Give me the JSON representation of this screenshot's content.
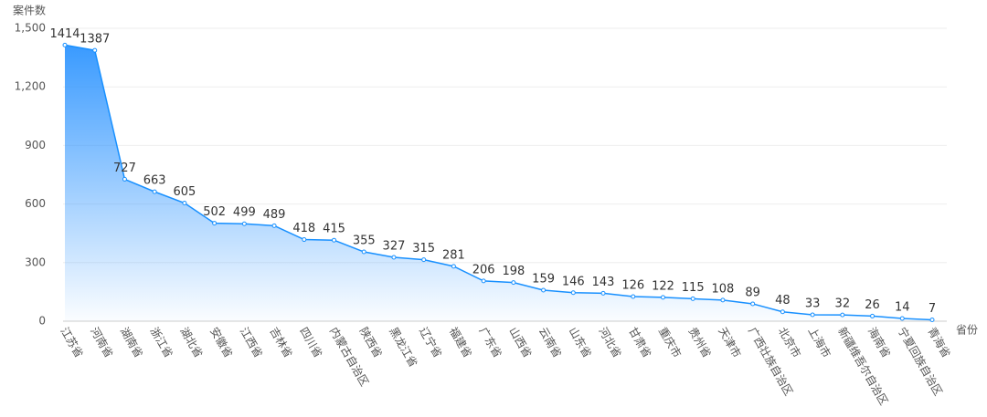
{
  "chart_data": {
    "type": "area",
    "y_label": "案件数",
    "x_label": "省份",
    "categories": [
      "江苏省",
      "河南省",
      "湖南省",
      "浙江省",
      "湖北省",
      "安徽省",
      "江西省",
      "吉林省",
      "四川省",
      "内蒙古自治区",
      "陕西省",
      "黑龙江省",
      "辽宁省",
      "福建省",
      "广东省",
      "山西省",
      "云南省",
      "山东省",
      "河北省",
      "甘肃省",
      "重庆市",
      "贵州省",
      "天津市",
      "广西壮族自治区",
      "北京市",
      "上海市",
      "新疆维吾尔自治区",
      "海南省",
      "宁夏回族自治区",
      "青海省"
    ],
    "values": [
      1414,
      1387,
      727,
      663,
      605,
      502,
      499,
      489,
      418,
      415,
      355,
      327,
      315,
      281,
      206,
      198,
      159,
      146,
      143,
      126,
      122,
      115,
      108,
      89,
      48,
      33,
      32,
      26,
      14,
      7
    ],
    "color": "#1890ff",
    "ylim": [
      0,
      1500
    ],
    "yticks": [
      0,
      300,
      600,
      900,
      {
        "value": 1200,
        "label": "1,200"
      },
      {
        "value": 1500,
        "label": "1,500"
      }
    ],
    "grid": true
  }
}
